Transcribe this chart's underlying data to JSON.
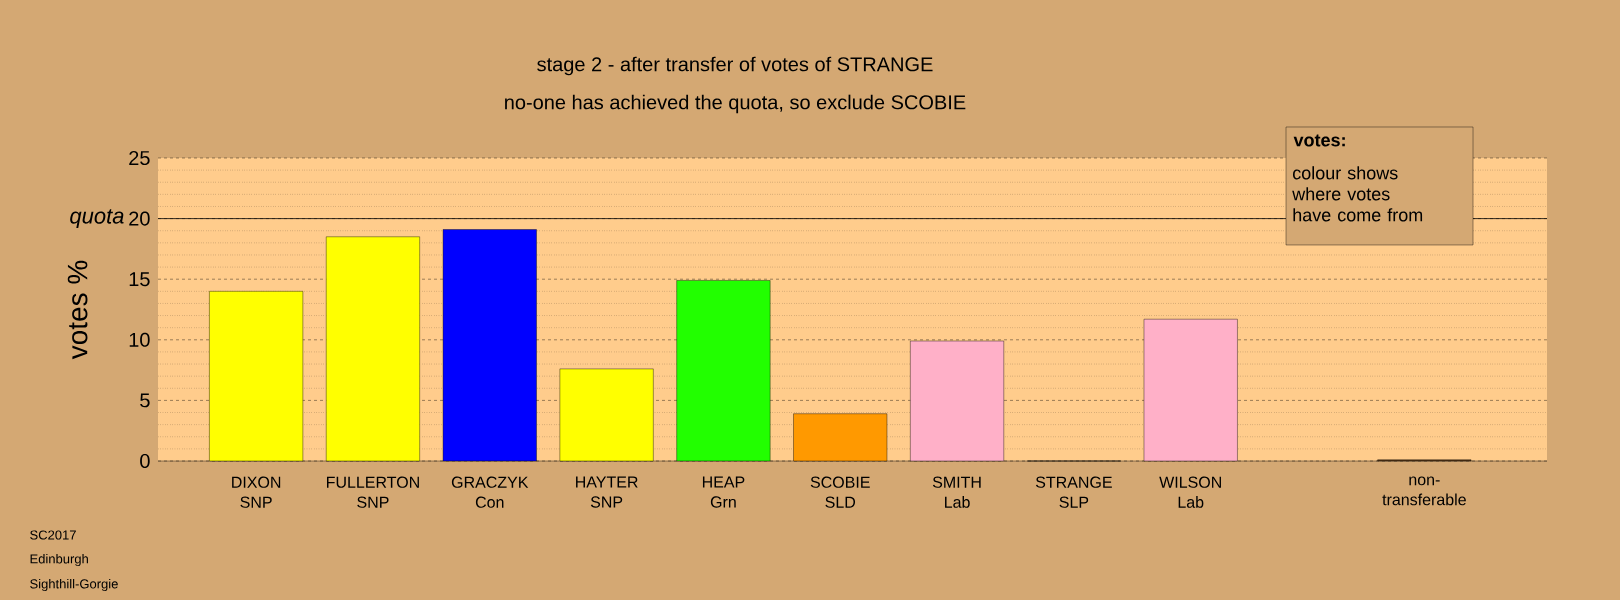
{
  "chart_data": {
    "type": "bar",
    "title": "stage 2 - after transfer of votes of STRANGE",
    "subtitle": "no-one has achieved the quota, so exclude SCOBIE",
    "ylabel": "votes %",
    "categories": [
      "DIXON SNP",
      "FULLERTON SNP",
      "GRACZYK Con",
      "HAYTER SNP",
      "HEAP Grn",
      "SCOBIE SLD",
      "SMITH Lab",
      "STRANGE SLP",
      "WILSON Lab",
      null,
      "non- transferable"
    ],
    "values": [
      14.0,
      18.5,
      19.1,
      7.6,
      14.9,
      3.9,
      9.9,
      0,
      11.7,
      null,
      0.1
    ],
    "colors": [
      "#ffff00",
      "#ffff00",
      "#0000ff",
      "#ffff00",
      "#22ff00",
      "#ff9900",
      "#ffb0c8",
      "#ffffff",
      "#ffb0c8",
      "#ffffff",
      "#5a3a1a"
    ],
    "ylim": [
      0,
      25
    ],
    "yticks": [
      0,
      5,
      10,
      15,
      20,
      25
    ],
    "grid": "y",
    "ref_lines": [
      {
        "axis": "y",
        "value": 20,
        "label": "quota"
      }
    ],
    "annotations": [
      "votes:",
      "colour shows where votes have come from",
      "SC2017",
      "Edinburgh",
      "Sighthill-Gorgie"
    ]
  }
}
